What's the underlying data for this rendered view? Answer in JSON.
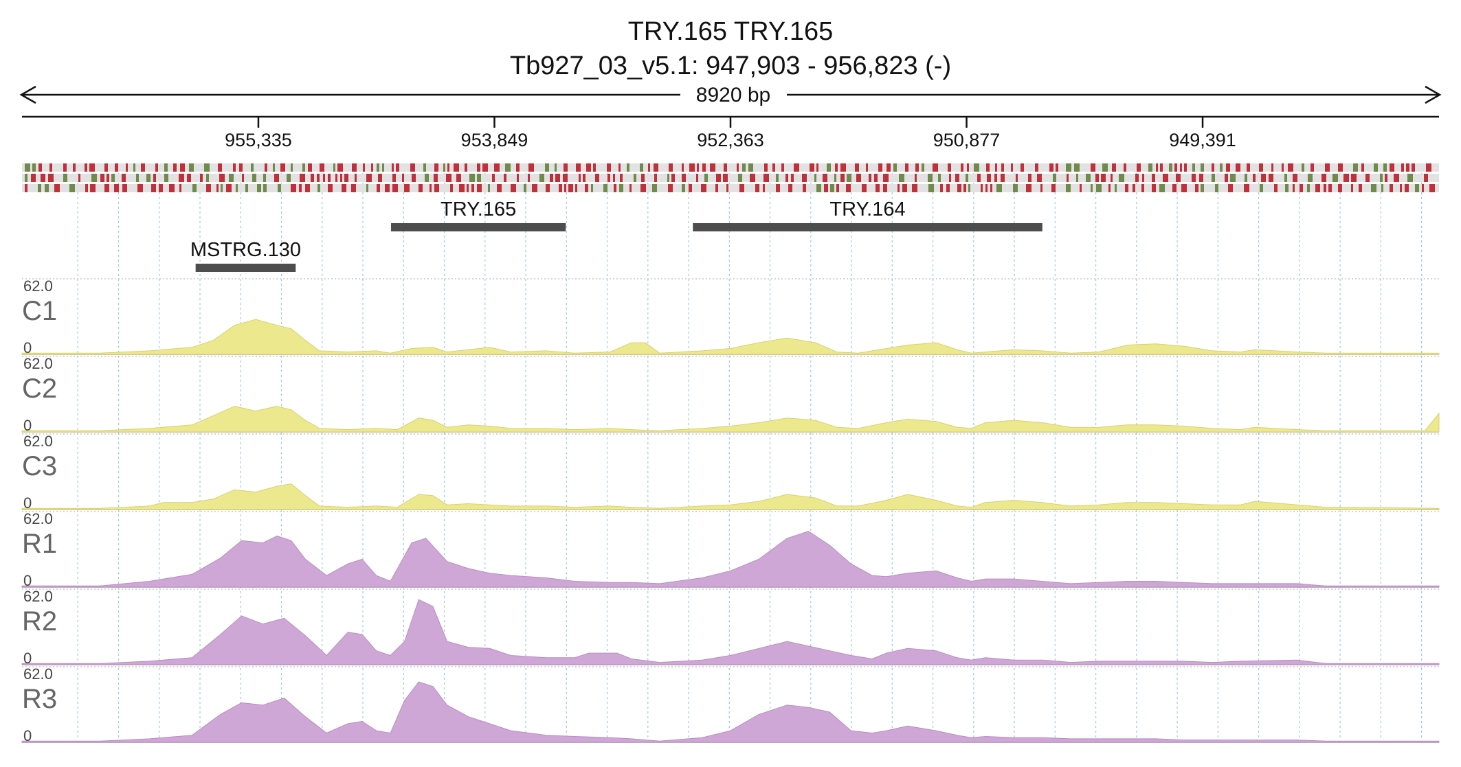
{
  "header": {
    "title": "TRY.165  TRY.165",
    "locus": "Tb927_03_v5.1: 947,903 - 956,823 (-)",
    "span_label": "8920 bp"
  },
  "region": {
    "start": 947903,
    "end": 956823,
    "strand": "-"
  },
  "ruler": {
    "ticks": [
      {
        "pos": 955335,
        "label": "955,335"
      },
      {
        "pos": 953849,
        "label": "953,849"
      },
      {
        "pos": 952363,
        "label": "952,363"
      },
      {
        "pos": 950877,
        "label": "950,877"
      },
      {
        "pos": 949391,
        "label": "949,391"
      }
    ]
  },
  "colors": {
    "coverage_c": "#ece88e",
    "coverage_r": "#cfa7d6",
    "feature": "#4d4d4d",
    "variant_red": "#c0303a",
    "variant_green": "#6f8a4a",
    "variant_track_bg": "#e2e2e2",
    "grid": "#7fb2ea"
  },
  "genes": [
    {
      "name": "TRY.165",
      "start": 953400,
      "end": 954500,
      "row": 0
    },
    {
      "name": "TRY.164",
      "start": 950400,
      "end": 952600,
      "row": 0
    },
    {
      "name": "MSTRG.130",
      "start": 955100,
      "end": 955730,
      "row": 1
    }
  ],
  "tracks": [
    {
      "name": "C1",
      "max": "62.0",
      "min": "0",
      "group": "c"
    },
    {
      "name": "C2",
      "max": "62.0",
      "min": "0",
      "group": "c"
    },
    {
      "name": "C3",
      "max": "62.0",
      "min": "0",
      "group": "c"
    },
    {
      "name": "R1",
      "max": "62.0",
      "min": "0",
      "group": "r"
    },
    {
      "name": "R2",
      "max": "62.0",
      "min": "0",
      "group": "r"
    },
    {
      "name": "R3",
      "max": "62.0",
      "min": "0",
      "group": "r"
    }
  ],
  "coverage_profiles": {
    "C1": [
      [
        0,
        1
      ],
      [
        0.055,
        1
      ],
      [
        0.09,
        3
      ],
      [
        0.12,
        6
      ],
      [
        0.135,
        12
      ],
      [
        0.15,
        25
      ],
      [
        0.165,
        30
      ],
      [
        0.18,
        25
      ],
      [
        0.19,
        22
      ],
      [
        0.2,
        12
      ],
      [
        0.21,
        3
      ],
      [
        0.23,
        2
      ],
      [
        0.25,
        3
      ],
      [
        0.26,
        1
      ],
      [
        0.275,
        5
      ],
      [
        0.29,
        6
      ],
      [
        0.3,
        2
      ],
      [
        0.315,
        4
      ],
      [
        0.33,
        6
      ],
      [
        0.345,
        2
      ],
      [
        0.37,
        3
      ],
      [
        0.39,
        1
      ],
      [
        0.415,
        2
      ],
      [
        0.43,
        10
      ],
      [
        0.44,
        10
      ],
      [
        0.45,
        1
      ],
      [
        0.48,
        3
      ],
      [
        0.5,
        5
      ],
      [
        0.52,
        10
      ],
      [
        0.54,
        14
      ],
      [
        0.56,
        10
      ],
      [
        0.575,
        2
      ],
      [
        0.59,
        1
      ],
      [
        0.61,
        5
      ],
      [
        0.625,
        8
      ],
      [
        0.645,
        10
      ],
      [
        0.66,
        4
      ],
      [
        0.67,
        1
      ],
      [
        0.68,
        2
      ],
      [
        0.7,
        4
      ],
      [
        0.72,
        3
      ],
      [
        0.74,
        1
      ],
      [
        0.76,
        2
      ],
      [
        0.78,
        8
      ],
      [
        0.8,
        9
      ],
      [
        0.82,
        7
      ],
      [
        0.84,
        3
      ],
      [
        0.86,
        2
      ],
      [
        0.87,
        4
      ],
      [
        0.9,
        2
      ],
      [
        0.92,
        1
      ],
      [
        1,
        1
      ]
    ],
    "C2": [
      [
        0,
        1
      ],
      [
        0.055,
        1
      ],
      [
        0.09,
        3
      ],
      [
        0.12,
        6
      ],
      [
        0.135,
        14
      ],
      [
        0.15,
        22
      ],
      [
        0.165,
        18
      ],
      [
        0.18,
        22
      ],
      [
        0.19,
        19
      ],
      [
        0.2,
        10
      ],
      [
        0.21,
        3
      ],
      [
        0.23,
        2
      ],
      [
        0.25,
        3
      ],
      [
        0.265,
        2
      ],
      [
        0.28,
        12
      ],
      [
        0.29,
        10
      ],
      [
        0.3,
        4
      ],
      [
        0.315,
        6
      ],
      [
        0.33,
        5
      ],
      [
        0.345,
        3
      ],
      [
        0.37,
        3
      ],
      [
        0.39,
        2
      ],
      [
        0.415,
        3
      ],
      [
        0.43,
        2
      ],
      [
        0.45,
        1
      ],
      [
        0.48,
        3
      ],
      [
        0.5,
        5
      ],
      [
        0.52,
        8
      ],
      [
        0.54,
        12
      ],
      [
        0.56,
        10
      ],
      [
        0.575,
        4
      ],
      [
        0.59,
        3
      ],
      [
        0.61,
        8
      ],
      [
        0.625,
        11
      ],
      [
        0.645,
        9
      ],
      [
        0.66,
        4
      ],
      [
        0.67,
        3
      ],
      [
        0.68,
        8
      ],
      [
        0.7,
        10
      ],
      [
        0.72,
        8
      ],
      [
        0.74,
        4
      ],
      [
        0.76,
        4
      ],
      [
        0.78,
        6
      ],
      [
        0.8,
        6
      ],
      [
        0.82,
        5
      ],
      [
        0.84,
        3
      ],
      [
        0.86,
        2
      ],
      [
        0.87,
        4
      ],
      [
        0.9,
        2
      ],
      [
        0.92,
        1
      ],
      [
        0.99,
        1
      ],
      [
        1,
        16
      ]
    ],
    "C3": [
      [
        0,
        1
      ],
      [
        0.055,
        1
      ],
      [
        0.09,
        3
      ],
      [
        0.1,
        6
      ],
      [
        0.12,
        6
      ],
      [
        0.135,
        9
      ],
      [
        0.15,
        17
      ],
      [
        0.165,
        15
      ],
      [
        0.18,
        20
      ],
      [
        0.19,
        22
      ],
      [
        0.2,
        12
      ],
      [
        0.21,
        3
      ],
      [
        0.23,
        2
      ],
      [
        0.25,
        3
      ],
      [
        0.265,
        2
      ],
      [
        0.28,
        13
      ],
      [
        0.29,
        12
      ],
      [
        0.3,
        4
      ],
      [
        0.315,
        5
      ],
      [
        0.33,
        4
      ],
      [
        0.345,
        3
      ],
      [
        0.37,
        3
      ],
      [
        0.39,
        2
      ],
      [
        0.415,
        3
      ],
      [
        0.43,
        2
      ],
      [
        0.45,
        1
      ],
      [
        0.48,
        3
      ],
      [
        0.5,
        4
      ],
      [
        0.52,
        7
      ],
      [
        0.54,
        13
      ],
      [
        0.56,
        10
      ],
      [
        0.575,
        3
      ],
      [
        0.59,
        3
      ],
      [
        0.61,
        8
      ],
      [
        0.625,
        13
      ],
      [
        0.645,
        8
      ],
      [
        0.66,
        3
      ],
      [
        0.67,
        2
      ],
      [
        0.68,
        6
      ],
      [
        0.7,
        8
      ],
      [
        0.72,
        6
      ],
      [
        0.74,
        3
      ],
      [
        0.76,
        4
      ],
      [
        0.78,
        6
      ],
      [
        0.8,
        6
      ],
      [
        0.82,
        5
      ],
      [
        0.84,
        4
      ],
      [
        0.86,
        4
      ],
      [
        0.87,
        7
      ],
      [
        0.9,
        4
      ],
      [
        0.92,
        2
      ],
      [
        1,
        1
      ]
    ],
    "R1": [
      [
        0,
        1
      ],
      [
        0.055,
        1
      ],
      [
        0.09,
        5
      ],
      [
        0.12,
        11
      ],
      [
        0.14,
        25
      ],
      [
        0.155,
        40
      ],
      [
        0.17,
        38
      ],
      [
        0.18,
        44
      ],
      [
        0.19,
        40
      ],
      [
        0.2,
        24
      ],
      [
        0.215,
        10
      ],
      [
        0.23,
        20
      ],
      [
        0.24,
        24
      ],
      [
        0.25,
        10
      ],
      [
        0.26,
        5
      ],
      [
        0.275,
        38
      ],
      [
        0.285,
        42
      ],
      [
        0.3,
        22
      ],
      [
        0.315,
        16
      ],
      [
        0.33,
        12
      ],
      [
        0.345,
        10
      ],
      [
        0.37,
        8
      ],
      [
        0.39,
        5
      ],
      [
        0.415,
        4
      ],
      [
        0.43,
        4
      ],
      [
        0.45,
        3
      ],
      [
        0.48,
        8
      ],
      [
        0.5,
        14
      ],
      [
        0.52,
        24
      ],
      [
        0.54,
        42
      ],
      [
        0.555,
        48
      ],
      [
        0.57,
        36
      ],
      [
        0.585,
        20
      ],
      [
        0.6,
        10
      ],
      [
        0.61,
        9
      ],
      [
        0.625,
        12
      ],
      [
        0.645,
        14
      ],
      [
        0.66,
        8
      ],
      [
        0.67,
        5
      ],
      [
        0.68,
        7
      ],
      [
        0.7,
        7
      ],
      [
        0.72,
        5
      ],
      [
        0.74,
        3
      ],
      [
        0.76,
        4
      ],
      [
        0.78,
        5
      ],
      [
        0.8,
        5
      ],
      [
        0.82,
        4
      ],
      [
        0.84,
        3
      ],
      [
        0.86,
        3
      ],
      [
        0.9,
        3
      ],
      [
        0.92,
        1
      ],
      [
        1,
        1
      ]
    ],
    "R2": [
      [
        0,
        1
      ],
      [
        0.055,
        1
      ],
      [
        0.09,
        3
      ],
      [
        0.12,
        6
      ],
      [
        0.14,
        26
      ],
      [
        0.155,
        42
      ],
      [
        0.17,
        35
      ],
      [
        0.185,
        40
      ],
      [
        0.2,
        25
      ],
      [
        0.215,
        8
      ],
      [
        0.23,
        28
      ],
      [
        0.24,
        26
      ],
      [
        0.25,
        12
      ],
      [
        0.26,
        8
      ],
      [
        0.27,
        20
      ],
      [
        0.28,
        56
      ],
      [
        0.29,
        50
      ],
      [
        0.3,
        20
      ],
      [
        0.315,
        15
      ],
      [
        0.33,
        14
      ],
      [
        0.345,
        8
      ],
      [
        0.37,
        6
      ],
      [
        0.39,
        6
      ],
      [
        0.4,
        10
      ],
      [
        0.42,
        10
      ],
      [
        0.43,
        5
      ],
      [
        0.45,
        2
      ],
      [
        0.48,
        4
      ],
      [
        0.5,
        8
      ],
      [
        0.52,
        14
      ],
      [
        0.54,
        20
      ],
      [
        0.555,
        16
      ],
      [
        0.57,
        12
      ],
      [
        0.585,
        8
      ],
      [
        0.6,
        5
      ],
      [
        0.61,
        10
      ],
      [
        0.625,
        14
      ],
      [
        0.645,
        12
      ],
      [
        0.66,
        6
      ],
      [
        0.67,
        4
      ],
      [
        0.68,
        6
      ],
      [
        0.7,
        4
      ],
      [
        0.72,
        4
      ],
      [
        0.74,
        2
      ],
      [
        0.76,
        3
      ],
      [
        0.78,
        3
      ],
      [
        0.8,
        3
      ],
      [
        0.82,
        3
      ],
      [
        0.84,
        2
      ],
      [
        0.86,
        3
      ],
      [
        0.9,
        4
      ],
      [
        0.92,
        1
      ],
      [
        1,
        1
      ]
    ],
    "R3": [
      [
        0,
        1
      ],
      [
        0.055,
        1
      ],
      [
        0.09,
        3
      ],
      [
        0.12,
        6
      ],
      [
        0.14,
        24
      ],
      [
        0.155,
        34
      ],
      [
        0.17,
        32
      ],
      [
        0.185,
        38
      ],
      [
        0.2,
        22
      ],
      [
        0.215,
        8
      ],
      [
        0.23,
        16
      ],
      [
        0.24,
        18
      ],
      [
        0.25,
        10
      ],
      [
        0.26,
        8
      ],
      [
        0.27,
        36
      ],
      [
        0.28,
        52
      ],
      [
        0.29,
        48
      ],
      [
        0.3,
        32
      ],
      [
        0.315,
        22
      ],
      [
        0.33,
        16
      ],
      [
        0.345,
        10
      ],
      [
        0.37,
        6
      ],
      [
        0.39,
        5
      ],
      [
        0.415,
        4
      ],
      [
        0.43,
        3
      ],
      [
        0.45,
        1
      ],
      [
        0.48,
        4
      ],
      [
        0.5,
        10
      ],
      [
        0.52,
        24
      ],
      [
        0.54,
        32
      ],
      [
        0.555,
        30
      ],
      [
        0.57,
        26
      ],
      [
        0.585,
        10
      ],
      [
        0.6,
        8
      ],
      [
        0.61,
        10
      ],
      [
        0.625,
        14
      ],
      [
        0.645,
        10
      ],
      [
        0.66,
        6
      ],
      [
        0.67,
        4
      ],
      [
        0.68,
        5
      ],
      [
        0.7,
        4
      ],
      [
        0.72,
        4
      ],
      [
        0.74,
        3
      ],
      [
        0.76,
        3
      ],
      [
        0.78,
        3
      ],
      [
        0.8,
        3
      ],
      [
        0.82,
        2
      ],
      [
        0.84,
        2
      ],
      [
        0.86,
        2
      ],
      [
        0.9,
        2
      ],
      [
        0.92,
        1
      ],
      [
        1,
        1
      ]
    ]
  }
}
